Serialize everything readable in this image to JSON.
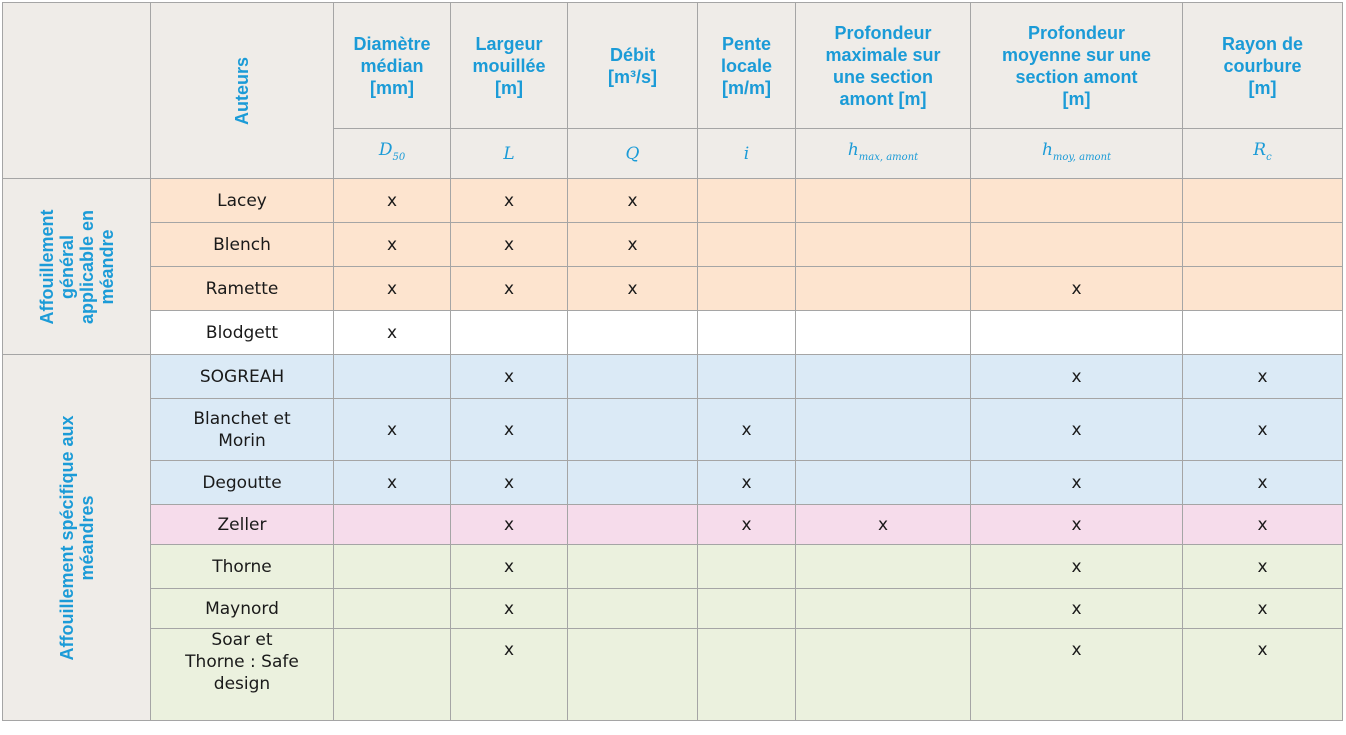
{
  "header": {
    "auteurs_label": "Auteurs",
    "columns": [
      {
        "title_lines": [
          "Diamètre",
          "médian",
          "[mm]"
        ],
        "symbol": "D",
        "sub": "50"
      },
      {
        "title_lines": [
          "Largeur",
          "mouillée",
          "[m]"
        ],
        "symbol": "L",
        "sub": ""
      },
      {
        "title_lines": [
          "Débit",
          "[m³/s]"
        ],
        "symbol": "Q",
        "sub": ""
      },
      {
        "title_lines": [
          "Pente",
          "locale",
          "[m/m]"
        ],
        "symbol": "i",
        "sub": ""
      },
      {
        "title_lines": [
          "Profondeur",
          "maximale sur",
          "une section",
          "amont [m]"
        ],
        "symbol": "h",
        "sub": "max, amont"
      },
      {
        "title_lines": [
          "Profondeur",
          "moyenne sur une",
          "section amont",
          "[m]"
        ],
        "symbol": "h",
        "sub": "moy, amont"
      },
      {
        "title_lines": [
          "Rayon de",
          "courbure",
          "[m]"
        ],
        "symbol": "R",
        "sub": "c"
      }
    ]
  },
  "groups": [
    {
      "label_lines": [
        "Affouillement",
        "général",
        "applicable en",
        "méandre"
      ],
      "rows": [
        {
          "author_lines": [
            "Lacey"
          ],
          "color": "#fde4cf",
          "cells": [
            "x",
            "x",
            "x",
            "",
            "",
            "",
            ""
          ]
        },
        {
          "author_lines": [
            "Blench"
          ],
          "color": "#fde4cf",
          "cells": [
            "x",
            "x",
            "x",
            "",
            "",
            "",
            ""
          ]
        },
        {
          "author_lines": [
            "Ramette"
          ],
          "color": "#fde4cf",
          "cells": [
            "x",
            "x",
            "x",
            "",
            "",
            "x",
            ""
          ]
        },
        {
          "author_lines": [
            "Blodgett"
          ],
          "color": "#ffffff",
          "cells": [
            "x",
            "",
            "",
            "",
            "",
            "",
            ""
          ]
        }
      ]
    },
    {
      "label_lines": [
        "Affouillement spécifique aux",
        "méandres"
      ],
      "rows": [
        {
          "author_lines": [
            "SOGREAH"
          ],
          "color": "#dbeaf6",
          "cells": [
            "",
            "x",
            "",
            "",
            "",
            "x",
            "x"
          ]
        },
        {
          "author_lines": [
            "Blanchet et",
            "Morin"
          ],
          "color": "#dbeaf6",
          "cells": [
            "x",
            "x",
            "",
            "x",
            "",
            "x",
            "x"
          ]
        },
        {
          "author_lines": [
            "Degoutte"
          ],
          "color": "#dbeaf6",
          "cells": [
            "x",
            "x",
            "",
            "x",
            "",
            "x",
            "x"
          ]
        },
        {
          "author_lines": [
            "Zeller"
          ],
          "color": "#f6dceb",
          "cells": [
            "",
            "x",
            "",
            "x",
            "x",
            "x",
            "x"
          ]
        },
        {
          "author_lines": [
            "Thorne"
          ],
          "color": "#ebf1de",
          "cells": [
            "",
            "x",
            "",
            "",
            "",
            "x",
            "x"
          ]
        },
        {
          "author_lines": [
            "Maynord"
          ],
          "color": "#ebf1de",
          "cells": [
            "",
            "x",
            "",
            "",
            "",
            "x",
            "x"
          ]
        },
        {
          "author_lines": [
            "Soar et",
            "Thorne : Safe",
            "design"
          ],
          "color": "#ebf1de",
          "cells": [
            "",
            "x",
            "",
            "",
            "",
            "x",
            "x"
          ]
        }
      ]
    }
  ]
}
